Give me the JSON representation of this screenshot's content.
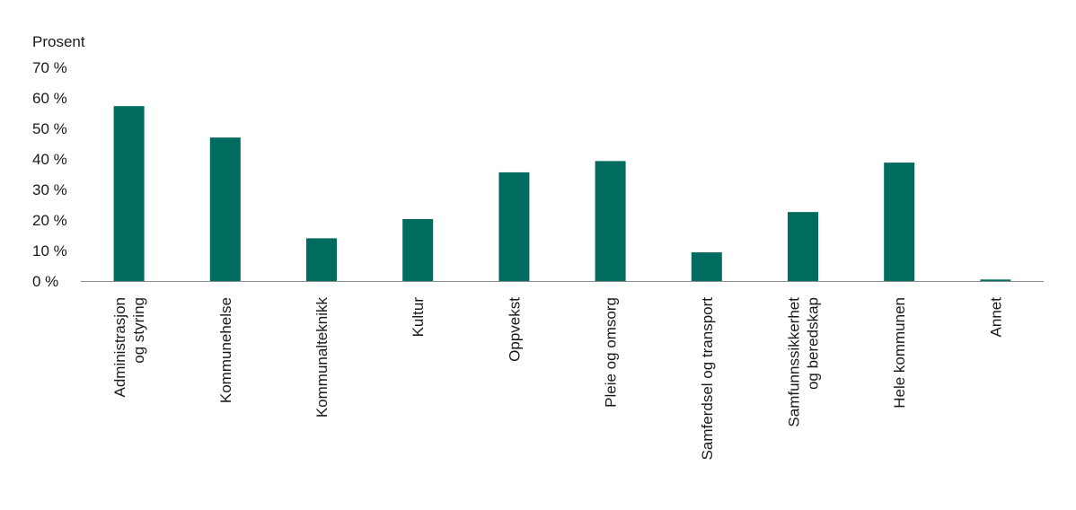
{
  "chart_data": {
    "type": "bar",
    "title": "",
    "ylabel": "Prosent",
    "xlabel": "",
    "ylim": [
      0,
      70
    ],
    "yticks": [
      0,
      10,
      20,
      30,
      40,
      50,
      60,
      70
    ],
    "ytick_suffix": " %",
    "grid": false,
    "legend": "none",
    "categories": [
      [
        "Administrasjon",
        "og styring"
      ],
      [
        "Kommunehelse"
      ],
      [
        "Kommunalteknikk"
      ],
      [
        "Kultur"
      ],
      [
        "Oppvekst"
      ],
      [
        "Pleie og omsorg"
      ],
      [
        "Samferdsel og transport"
      ],
      [
        "Samfunnssikkerhet",
        "og beredskap"
      ],
      [
        "Hele kommunen"
      ],
      [
        "Annet"
      ]
    ],
    "values": [
      57.3,
      47.0,
      14.0,
      20.3,
      35.6,
      39.3,
      9.4,
      22.6,
      38.8,
      0.5
    ],
    "colors": {
      "bar": "#006b5f",
      "axis": "#8c8c8c"
    }
  }
}
